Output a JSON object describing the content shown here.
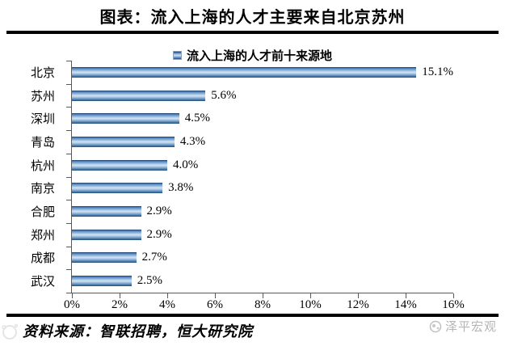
{
  "header": {
    "title": "图表：流入上海的人才主要来自北京苏州"
  },
  "chart_data": {
    "type": "bar",
    "orientation": "horizontal",
    "title": "流入上海的人才前十来源地",
    "legend": [
      "流入上海的人才前十来源地"
    ],
    "legend_position": "top-center",
    "categories": [
      "北京",
      "苏州",
      "深圳",
      "青岛",
      "杭州",
      "南京",
      "合肥",
      "郑州",
      "成都",
      "武汉"
    ],
    "values": [
      15.1,
      5.6,
      4.5,
      4.3,
      4.0,
      3.8,
      2.9,
      2.9,
      2.7,
      2.5
    ],
    "value_labels": [
      "15.1%",
      "5.6%",
      "4.5%",
      "4.3%",
      "4.0%",
      "3.8%",
      "2.9%",
      "2.9%",
      "2.7%",
      "2.5%"
    ],
    "x_tick_labels": [
      "0%",
      "2%",
      "4%",
      "6%",
      "8%",
      "10%",
      "12%",
      "14%",
      "16%"
    ],
    "xlim": [
      0,
      16
    ],
    "grid": false,
    "colors": {
      "bar_main": "#4f81bd",
      "bar_edge": "#17375e",
      "bar_highlight": "#d6e4f3",
      "axis": "#595959",
      "text": "#000000",
      "watermark": "#b5b5b5"
    }
  },
  "footer": {
    "source_note": "资料来源：智联招聘，恒大研究院",
    "watermark_label": "泽平宏观",
    "icons": {
      "watermark_logo": "zeping-macro-logo-icon",
      "corner_mark": "faint-stock-watermark-icon"
    }
  }
}
